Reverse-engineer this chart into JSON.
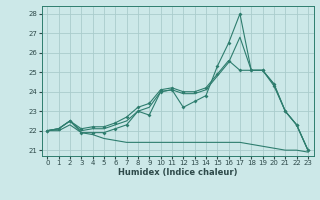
{
  "background_color": "#cce8e8",
  "grid_color": "#aacccc",
  "line_color": "#2e7d6e",
  "xlabel": "Humidex (Indice chaleur)",
  "xlim": [
    -0.5,
    23.5
  ],
  "ylim": [
    20.7,
    28.4
  ],
  "yticks": [
    21,
    22,
    23,
    24,
    25,
    26,
    27,
    28
  ],
  "line1_x": [
    0,
    1,
    2,
    3,
    4,
    5,
    6,
    7,
    8,
    9,
    10,
    11,
    12,
    13,
    14,
    15,
    16,
    17,
    18,
    19,
    20,
    21,
    22,
    23
  ],
  "line1_y": [
    22.0,
    22.1,
    22.5,
    21.9,
    21.9,
    21.9,
    22.1,
    22.3,
    23.0,
    22.8,
    24.0,
    24.1,
    23.2,
    23.5,
    23.8,
    25.3,
    26.5,
    28.0,
    25.1,
    25.1,
    24.3,
    23.0,
    22.3,
    21.0
  ],
  "line2_x": [
    0,
    1,
    2,
    3,
    4,
    5,
    6,
    7,
    8,
    9,
    10,
    11,
    12,
    13,
    14,
    15,
    16,
    17,
    18,
    19,
    20,
    21,
    22,
    23
  ],
  "line2_y": [
    22.0,
    22.1,
    22.5,
    22.0,
    22.1,
    22.1,
    22.3,
    22.5,
    23.0,
    23.2,
    24.0,
    24.1,
    23.9,
    23.9,
    24.1,
    24.8,
    25.5,
    26.8,
    25.1,
    25.1,
    24.4,
    23.0,
    22.3,
    21.0
  ],
  "line3_x": [
    0,
    1,
    2,
    3,
    4,
    5,
    6,
    7,
    8,
    9,
    10,
    11,
    12,
    13,
    14,
    15,
    16,
    17,
    18,
    19,
    20,
    21,
    22,
    23
  ],
  "line3_y": [
    22.0,
    22.1,
    22.5,
    22.1,
    22.2,
    22.2,
    22.4,
    22.7,
    23.2,
    23.4,
    24.1,
    24.2,
    24.0,
    24.0,
    24.2,
    24.9,
    25.6,
    25.1,
    25.1,
    25.1,
    24.4,
    23.0,
    22.3,
    21.0
  ],
  "line4_x": [
    0,
    1,
    2,
    3,
    4,
    5,
    6,
    7,
    8,
    9,
    10,
    11,
    12,
    13,
    14,
    15,
    16,
    17,
    18,
    19,
    20,
    21,
    22,
    23
  ],
  "line4_y": [
    22.0,
    22.0,
    22.3,
    21.9,
    21.8,
    21.6,
    21.5,
    21.4,
    21.4,
    21.4,
    21.4,
    21.4,
    21.4,
    21.4,
    21.4,
    21.4,
    21.4,
    21.4,
    21.3,
    21.2,
    21.1,
    21.0,
    21.0,
    20.9
  ]
}
